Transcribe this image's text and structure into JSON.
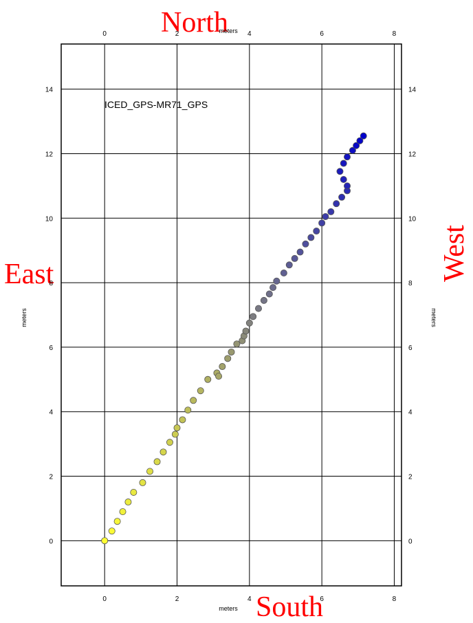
{
  "compass": {
    "north": "North",
    "south": "South",
    "east": "East",
    "west": "West"
  },
  "chart_data": {
    "type": "scatter",
    "title": "",
    "annotation": "ICED_GPS-MR71_GPS",
    "xlabel": "meters",
    "ylabel": "meters",
    "xlim": [
      -1.2,
      8.2
    ],
    "ylim": [
      -1.4,
      15.4
    ],
    "x_ticks": [
      0,
      2,
      4,
      6,
      8
    ],
    "y_ticks": [
      0,
      2,
      4,
      6,
      8,
      10,
      12,
      14
    ],
    "grid": true,
    "color_start": "#ffff33",
    "color_end": "#0000cc",
    "x": [
      0.0,
      0.2,
      0.35,
      0.5,
      0.65,
      0.8,
      1.05,
      1.25,
      1.45,
      1.62,
      1.8,
      1.95,
      2.0,
      2.15,
      2.3,
      2.45,
      2.65,
      2.85,
      3.1,
      3.15,
      3.25,
      3.4,
      3.5,
      3.65,
      3.8,
      3.85,
      3.9,
      4.0,
      4.1,
      4.25,
      4.4,
      4.55,
      4.65,
      4.75,
      4.95,
      5.1,
      5.25,
      5.4,
      5.55,
      5.7,
      5.85,
      6.0,
      6.1,
      6.25,
      6.4,
      6.55,
      6.7,
      6.7,
      6.6,
      6.5,
      6.6,
      6.7,
      6.85,
      6.95,
      7.05,
      7.15
    ],
    "y": [
      0.0,
      0.3,
      0.6,
      0.9,
      1.2,
      1.5,
      1.8,
      2.15,
      2.45,
      2.75,
      3.05,
      3.3,
      3.5,
      3.75,
      4.05,
      4.35,
      4.65,
      5.0,
      5.2,
      5.1,
      5.4,
      5.65,
      5.85,
      6.1,
      6.2,
      6.35,
      6.5,
      6.75,
      6.95,
      7.2,
      7.45,
      7.65,
      7.85,
      8.05,
      8.3,
      8.55,
      8.75,
      8.95,
      9.2,
      9.4,
      9.6,
      9.85,
      10.05,
      10.2,
      10.45,
      10.65,
      10.85,
      11.0,
      11.2,
      11.45,
      11.7,
      11.9,
      12.1,
      12.25,
      12.4,
      12.55
    ]
  }
}
